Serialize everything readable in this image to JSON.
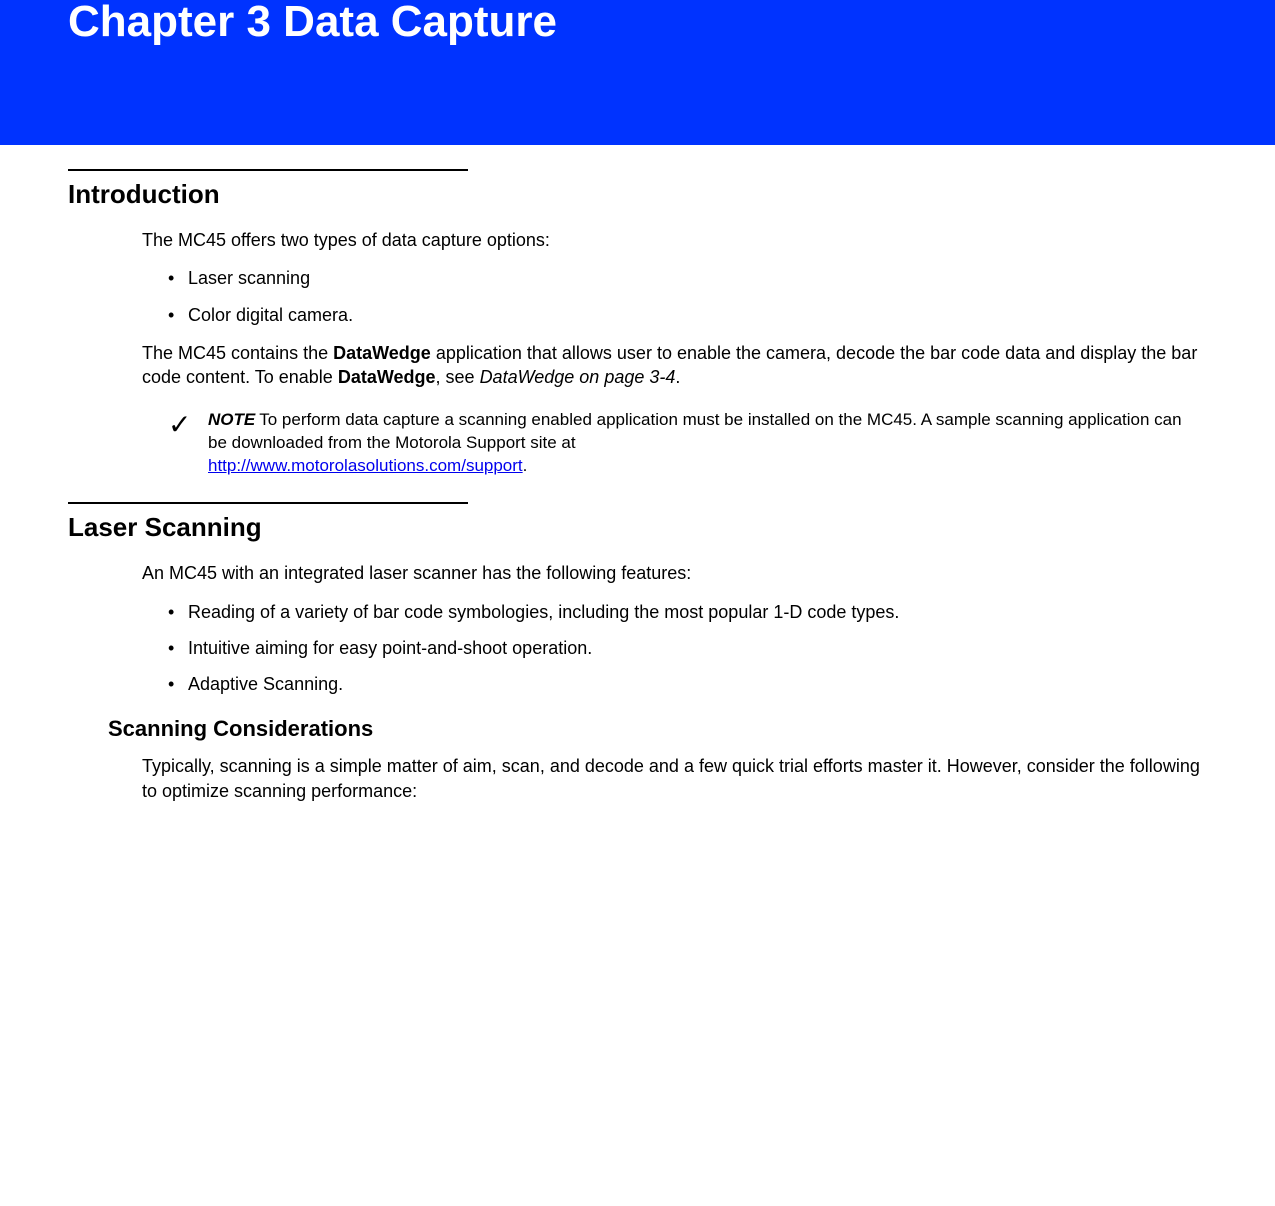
{
  "banner": {
    "title": "Chapter 3 Data Capture",
    "bg_color": "#0033ff",
    "text_color": "#ffffff"
  },
  "intro": {
    "heading": "Introduction",
    "para1": "The MC45 offers two types of data capture options:",
    "bullets": [
      "Laser scanning",
      "Color digital camera."
    ],
    "para2_pre": "The MC45 contains the ",
    "para2_bold1": "DataWedge",
    "para2_mid": " application that allows user to enable the camera, decode the bar code data and display the bar code content. To enable ",
    "para2_bold2": "DataWedge",
    "para2_see": ", see ",
    "para2_ref": "DataWedge on page 3-4",
    "para2_end": "."
  },
  "note": {
    "check_glyph": "✓",
    "label": "NOTE",
    "text_pre": "To perform data capture a scanning enabled application must be installed on the MC45. A sample scanning application can be downloaded from the Motorola Support site at ",
    "link_text": "http://www.motorolasolutions.com/support",
    "text_post": "."
  },
  "laser": {
    "heading": "Laser Scanning",
    "para1": "An MC45 with an integrated laser scanner has the following features:",
    "bullets": [
      "Reading of a variety of bar code symbologies, including the most popular 1-D code types.",
      "Intuitive aiming for easy point-and-shoot operation.",
      "Adaptive Scanning."
    ],
    "sub_heading": "Scanning Considerations",
    "sub_para": "Typically, scanning is a simple matter of aim, scan, and decode and a few quick trial efforts master it. However, consider the following to optimize scanning performance:"
  }
}
